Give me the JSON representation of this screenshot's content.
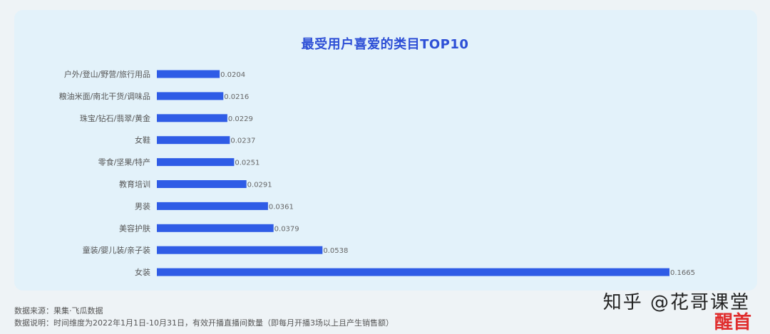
{
  "chart_data": {
    "type": "bar",
    "orientation": "horizontal",
    "title": "最受用户喜爱的类目TOP10",
    "categories": [
      "户外/登山/野营/旅行用品",
      "粮油米面/南北干货/调味品",
      "珠宝/钻石/翡翠/黄金",
      "女鞋",
      "零食/坚果/特产",
      "教育培训",
      "男装",
      "美容护肤",
      "童装/婴儿装/亲子装",
      "女装"
    ],
    "values": [
      0.0204,
      0.0216,
      0.0229,
      0.0237,
      0.0251,
      0.0291,
      0.0361,
      0.0379,
      0.0538,
      0.1665
    ],
    "value_labels": [
      "0.0204",
      "0.0216",
      "0.0229",
      "0.0237",
      "0.0251",
      "0.0291",
      "0.0361",
      "0.0379",
      "0.0538",
      "0.1665"
    ],
    "bar_color": "#2f5ce6",
    "xlim": [
      0,
      0.1665
    ]
  },
  "footer": {
    "source_label": "数据来源：",
    "source_value": "果集·飞瓜数据",
    "note_label": "数据说明：",
    "note_value": "时间维度为2022年1月1日-10月31日，有效开播直播间数量（即每月开播3场以上且产生销售额）"
  },
  "watermark": {
    "line1": "知乎 @花哥课堂",
    "line2": "醒首"
  }
}
